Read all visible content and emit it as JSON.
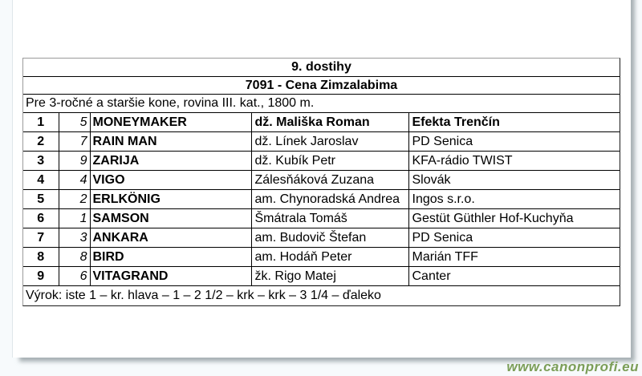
{
  "document": {
    "race_header": "9. dostihy",
    "race_title": "7091 - Cena Zimzalabima",
    "race_conditions": "Pre 3-ročné a staršie kone, rovina III. kat., 1800 m.",
    "verdict_line": "Výrok: iste 1 – kr. hlava – 1 – 2 1/2 – krk – krk – 3 1/4 – ďaleko"
  },
  "results": {
    "rows": [
      {
        "position": "1",
        "number": "5",
        "horse": "MONEYMAKER",
        "jockey": "dž. Mališka Roman",
        "stable": "Efekta Trenčín",
        "winner": true
      },
      {
        "position": "2",
        "number": "7",
        "horse": "RAIN MAN",
        "jockey": "dž. Línek Jaroslav",
        "stable": "PD Senica",
        "winner": false
      },
      {
        "position": "3",
        "number": "9",
        "horse": "ZARIJA",
        "jockey": "dž. Kubík Petr",
        "stable": "KFA-rádio TWIST",
        "winner": false
      },
      {
        "position": "4",
        "number": "4",
        "horse": "VIGO",
        "jockey": "Zálesňáková Zuzana",
        "stable": "Slovák",
        "winner": false
      },
      {
        "position": "5",
        "number": "2",
        "horse": "ERLKÖNIG",
        "jockey": "am. Chynoradská Andrea",
        "stable": "Ingos s.r.o.",
        "winner": false
      },
      {
        "position": "6",
        "number": "1",
        "horse": "SAMSON",
        "jockey": "Šmátrala Tomáš",
        "stable": "Gestüt Güthler Hof-Kuchyňa",
        "winner": false
      },
      {
        "position": "7",
        "number": "3",
        "horse": "ANKARA",
        "jockey": "am. Budovič Štefan",
        "stable": "PD Senica",
        "winner": false
      },
      {
        "position": "8",
        "number": "8",
        "horse": "BIRD",
        "jockey": "am. Hodáň Peter",
        "stable": "Marián TFF",
        "winner": false
      },
      {
        "position": "9",
        "number": "6",
        "horse": "VITAGRAND",
        "jockey": "žk. Rigo Matej",
        "stable": "Canter",
        "winner": false
      }
    ]
  },
  "watermark": {
    "text": "www.canonprofi.eu",
    "color": "#7c9e58"
  }
}
